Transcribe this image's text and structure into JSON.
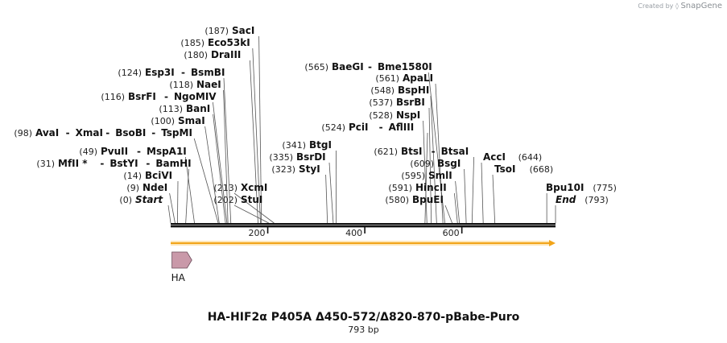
{
  "title": "HA-HIF2α P405A Δ450-572/Δ820-870-pBabe-Puro",
  "length_label": "793 bp",
  "credit": {
    "prefix": "Created by",
    "brand": "SnapGene"
  },
  "sequence_length": 793,
  "ruler_ticks": [
    {
      "value": 200,
      "label": "200"
    },
    {
      "value": 400,
      "label": "400"
    },
    {
      "value": 600,
      "label": "600"
    }
  ],
  "feature": {
    "name": "HA",
    "start": 1,
    "end": 27,
    "color": "#c999a9"
  },
  "orf": {
    "start": 0,
    "end": 793,
    "color": "#f2a418"
  },
  "sites": [
    {
      "pos": "(0)",
      "names": [
        "Start"
      ],
      "pos_bp": 0,
      "italic": true
    },
    {
      "pos": "(9)",
      "names": [
        "NdeI"
      ],
      "pos_bp": 9
    },
    {
      "pos": "(14)",
      "names": [
        "BciVI"
      ],
      "pos_bp": 14
    },
    {
      "pos": "(31)",
      "names": [
        "MfII *",
        "BstYI",
        "BamHI"
      ],
      "pos_bp": 31
    },
    {
      "pos": "(49)",
      "names": [
        "PvuII",
        "MspA1I"
      ],
      "pos_bp": 49
    },
    {
      "pos": "(98)",
      "names": [
        "AvaI",
        "XmaI",
        "BsoBI",
        "TspMI"
      ],
      "pos_bp": 98
    },
    {
      "pos": "(100)",
      "names": [
        "SmaI"
      ],
      "pos_bp": 100
    },
    {
      "pos": "(113)",
      "names": [
        "BanI"
      ],
      "pos_bp": 113
    },
    {
      "pos": "(116)",
      "names": [
        "BsrFI",
        "NgoMIV"
      ],
      "pos_bp": 116
    },
    {
      "pos": "(118)",
      "names": [
        "NaeI"
      ],
      "pos_bp": 118
    },
    {
      "pos": "(124)",
      "names": [
        "Esp3I",
        "BsmBI"
      ],
      "pos_bp": 124
    },
    {
      "pos": "(180)",
      "names": [
        "DraIII"
      ],
      "pos_bp": 180
    },
    {
      "pos": "(185)",
      "names": [
        "Eco53kI"
      ],
      "pos_bp": 185
    },
    {
      "pos": "(187)",
      "names": [
        "SacI"
      ],
      "pos_bp": 187
    },
    {
      "pos": "(202)",
      "names": [
        "StuI"
      ],
      "pos_bp": 202
    },
    {
      "pos": "(213)",
      "names": [
        "XcmI"
      ],
      "pos_bp": 213
    },
    {
      "pos": "(323)",
      "names": [
        "StyI"
      ],
      "pos_bp": 323
    },
    {
      "pos": "(335)",
      "names": [
        "BsrDI"
      ],
      "pos_bp": 335
    },
    {
      "pos": "(341)",
      "names": [
        "BtgI"
      ],
      "pos_bp": 341
    },
    {
      "pos": "(524)",
      "names": [
        "PciI",
        "AflIII"
      ],
      "pos_bp": 524
    },
    {
      "pos": "(528)",
      "names": [
        "NspI"
      ],
      "pos_bp": 528
    },
    {
      "pos": "(537)",
      "names": [
        "BsrBI"
      ],
      "pos_bp": 537
    },
    {
      "pos": "(548)",
      "names": [
        "BspHI"
      ],
      "pos_bp": 548
    },
    {
      "pos": "(561)",
      "names": [
        "ApaLI"
      ],
      "pos_bp": 561
    },
    {
      "pos": "(565)",
      "names": [
        "BaeGI",
        "Bme1580I"
      ],
      "pos_bp": 565
    },
    {
      "pos": "(580)",
      "names": [
        "BpuEI"
      ],
      "pos_bp": 580
    },
    {
      "pos": "(591)",
      "names": [
        "HincII"
      ],
      "pos_bp": 591
    },
    {
      "pos": "(595)",
      "names": [
        "SmlI"
      ],
      "pos_bp": 595
    },
    {
      "pos": "(609)",
      "names": [
        "BsgI"
      ],
      "pos_bp": 609
    },
    {
      "pos": "(621)",
      "names": [
        "BtsI",
        "BtsaI"
      ],
      "pos_bp": 621
    },
    {
      "pos": "(644)",
      "names": [
        "AccI"
      ],
      "pos_bp": 644
    },
    {
      "pos": "(668)",
      "names": [
        "TsoI"
      ],
      "pos_bp": 668
    },
    {
      "pos": "(775)",
      "names": [
        "Bpu10I"
      ],
      "pos_bp": 775
    },
    {
      "pos": "(793)",
      "names": [
        "End"
      ],
      "pos_bp": 793,
      "italic": true
    }
  ]
}
